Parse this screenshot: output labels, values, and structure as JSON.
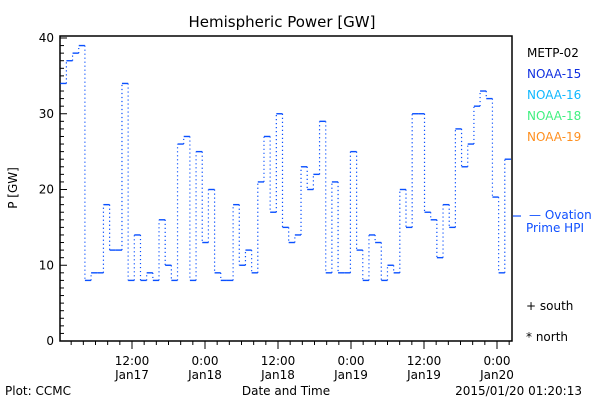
{
  "chart_data": {
    "type": "line",
    "title": "Hemispheric Power [GW]",
    "xlabel": "Date and Time",
    "ylabel": "P [GW]",
    "ylim": [
      0,
      40
    ],
    "yticks": [
      "0",
      "10",
      "20",
      "30",
      "40"
    ],
    "xlim_hours_from_jan17_0000": [
      0.2,
      74.5
    ],
    "xticks": [
      {
        "hour": 12,
        "time": "12:00",
        "date": "Jan17"
      },
      {
        "hour": 24,
        "time": "0:00",
        "date": "Jan18"
      },
      {
        "hour": 36,
        "time": "12:00",
        "date": "Jan18"
      },
      {
        "hour": 48,
        "time": "0:00",
        "date": "Jan19"
      },
      {
        "hour": 60,
        "time": "12:00",
        "date": "Jan19"
      },
      {
        "hour": 72,
        "time": "0:00",
        "date": "Jan20"
      }
    ],
    "series": [
      {
        "name": "NOAA-15",
        "style": "step",
        "color": "#0a50ff",
        "start_hour": 0.2,
        "step_hours": 1.015,
        "values": [
          34,
          37,
          38,
          39,
          8,
          9,
          9,
          18,
          12,
          12,
          34,
          8,
          14,
          8,
          9,
          8,
          16,
          10,
          8,
          26,
          27,
          8,
          25,
          13,
          20,
          9,
          8,
          8,
          18,
          10,
          12,
          9,
          21,
          27,
          17,
          30,
          15,
          13,
          14,
          23,
          20,
          22,
          29,
          9,
          21,
          9,
          9,
          25,
          12,
          8,
          14,
          13,
          8,
          10,
          9,
          20,
          15,
          30,
          30,
          17,
          16,
          11,
          18,
          15,
          28,
          23,
          26,
          31,
          33,
          32,
          19,
          9,
          24
        ]
      }
    ],
    "ovation_prime_hpi": 16.5,
    "legend": [
      {
        "label": "METP-02",
        "color": "#000000"
      },
      {
        "label": "NOAA-15",
        "color": "#1030e0"
      },
      {
        "label": "NOAA-16",
        "color": "#10b8ff"
      },
      {
        "label": "NOAA-18",
        "color": "#40f080"
      },
      {
        "label": "NOAA-19",
        "color": "#ff9020"
      }
    ],
    "ovation_label_1": "— Ovation",
    "ovation_label_2": "Prime HPI",
    "ovation_color": "#1050ff",
    "marker_legend": [
      {
        "label": "+ south"
      },
      {
        "label": "* north"
      }
    ]
  },
  "footer": {
    "left": "Plot: CCMC",
    "right": "2015/01/20 01:20:13"
  }
}
